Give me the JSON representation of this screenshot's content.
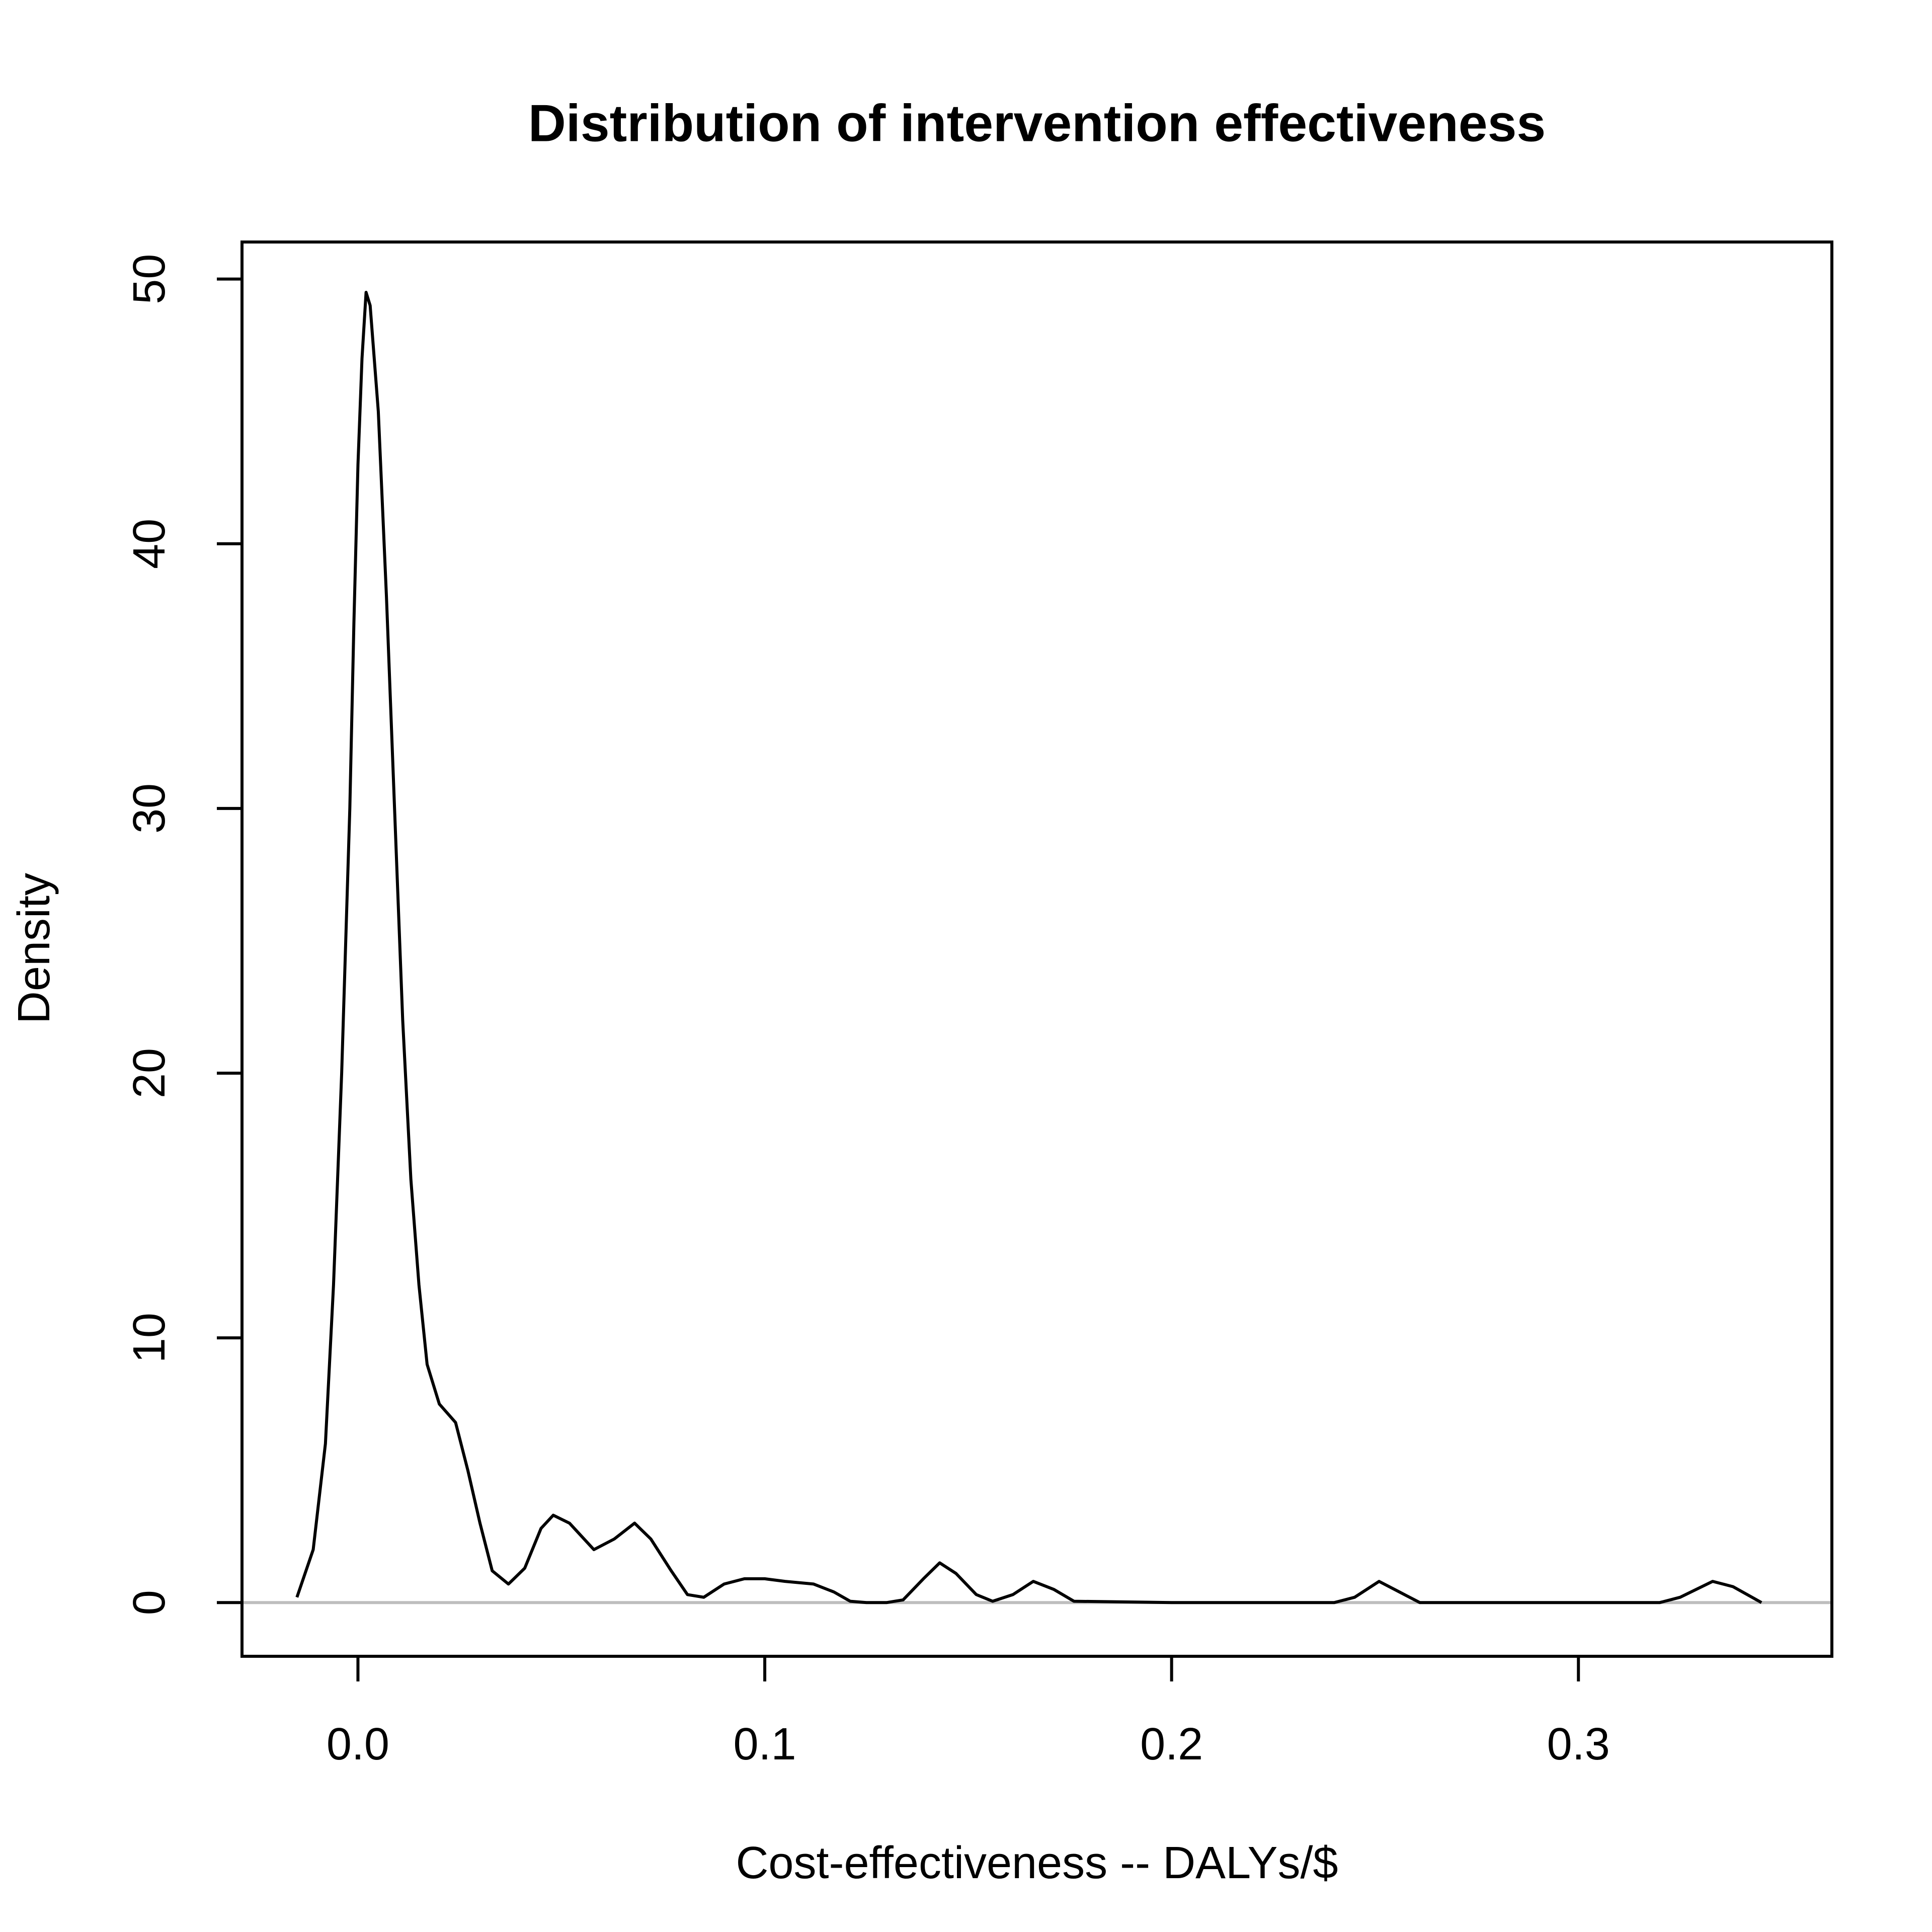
{
  "chart_data": {
    "type": "line",
    "title": "Distribution of intervention effectiveness",
    "x_label": "Cost-effectiveness -- DALYs/$",
    "y_label": "Density",
    "x": [
      -0.015,
      -0.011,
      -0.008,
      -0.006,
      -0.004,
      -0.002,
      -0.001,
      0.0,
      0.001,
      0.002,
      0.003,
      0.005,
      0.007,
      0.009,
      0.011,
      0.013,
      0.015,
      0.017,
      0.02,
      0.024,
      0.027,
      0.03,
      0.033,
      0.037,
      0.041,
      0.045,
      0.048,
      0.052,
      0.058,
      0.063,
      0.068,
      0.072,
      0.077,
      0.081,
      0.085,
      0.09,
      0.095,
      0.1,
      0.105,
      0.112,
      0.117,
      0.121,
      0.125,
      0.13,
      0.134,
      0.139,
      0.143,
      0.147,
      0.152,
      0.156,
      0.161,
      0.166,
      0.171,
      0.176,
      0.2,
      0.24,
      0.245,
      0.251,
      0.256,
      0.261,
      0.32,
      0.325,
      0.333,
      0.338,
      0.345
    ],
    "series": [
      {
        "name": "Density",
        "color": "#000000",
        "values": [
          0.2,
          2,
          6,
          12,
          20,
          30,
          37,
          43,
          47,
          49.5,
          49,
          45,
          38,
          30,
          22,
          16,
          12,
          9,
          7.5,
          6.8,
          5,
          3,
          1.2,
          0.7,
          1.3,
          2.8,
          3.3,
          3,
          2,
          2.4,
          3,
          2.4,
          1.2,
          0.3,
          0.2,
          0.7,
          0.9,
          0.9,
          0.8,
          0.7,
          0.4,
          0.05,
          0,
          0,
          0.1,
          0.9,
          1.5,
          1.1,
          0.3,
          0.05,
          0.3,
          0.8,
          0.5,
          0.05,
          0,
          0,
          0.2,
          0.8,
          0.4,
          0,
          0,
          0.2,
          0.8,
          0.6,
          0
        ]
      }
    ],
    "hline": {
      "value": 0,
      "color": "#bebebe"
    },
    "xlim": [
      -0.0285,
      0.3623
    ],
    "ylim": [
      -2.03,
      51.4
    ],
    "xticks": [
      {
        "value": 0,
        "label": "0.0"
      },
      0.1,
      0.2,
      0.3
    ],
    "yticks": [
      0,
      10,
      20,
      30,
      40,
      50
    ],
    "grid": false
  }
}
